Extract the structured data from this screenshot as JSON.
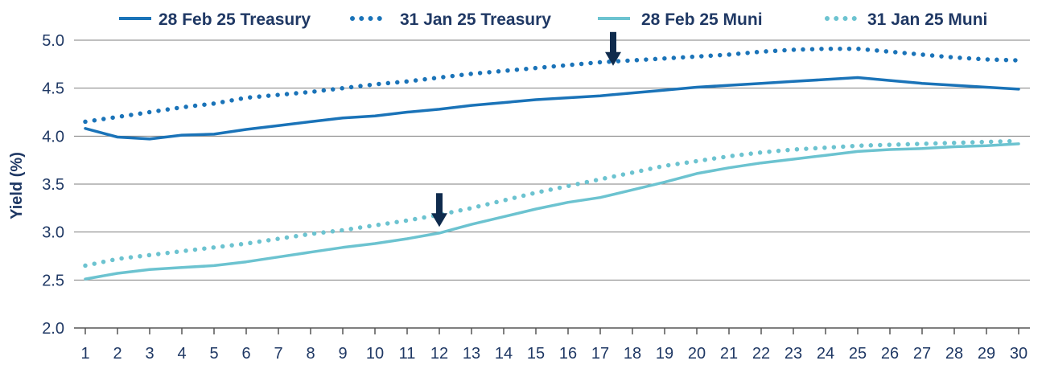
{
  "chart_data": {
    "type": "line",
    "title": "",
    "xlabel": "",
    "ylabel": "Yield (%)",
    "ylim": [
      2.0,
      5.0
    ],
    "yticks": [
      "2.0",
      "2.5",
      "3.0",
      "3.5",
      "4.0",
      "4.5",
      "5.0"
    ],
    "grid": "horizontal",
    "legend_position": "top",
    "x": [
      1,
      2,
      3,
      4,
      5,
      6,
      7,
      8,
      9,
      10,
      11,
      12,
      13,
      14,
      15,
      16,
      17,
      18,
      19,
      20,
      21,
      22,
      23,
      24,
      25,
      26,
      27,
      28,
      29,
      30
    ],
    "series": [
      {
        "name": "28 Feb 25 Treasury",
        "style": "solid",
        "color": "#1a73b8",
        "values": [
          4.08,
          3.99,
          3.97,
          4.01,
          4.02,
          4.07,
          4.11,
          4.15,
          4.19,
          4.21,
          4.25,
          4.28,
          4.32,
          4.35,
          4.38,
          4.4,
          4.42,
          4.45,
          4.48,
          4.51,
          4.53,
          4.55,
          4.57,
          4.59,
          4.61,
          4.58,
          4.55,
          4.53,
          4.51,
          4.49
        ]
      },
      {
        "name": "31 Jan 25 Treasury",
        "style": "dotted",
        "color": "#1a73b8",
        "values": [
          4.15,
          4.2,
          4.25,
          4.3,
          4.34,
          4.4,
          4.43,
          4.46,
          4.5,
          4.54,
          4.57,
          4.61,
          4.65,
          4.68,
          4.71,
          4.74,
          4.77,
          4.79,
          4.81,
          4.83,
          4.85,
          4.88,
          4.9,
          4.91,
          4.91,
          4.88,
          4.85,
          4.82,
          4.8,
          4.79
        ]
      },
      {
        "name": "28 Feb 25 Muni",
        "style": "solid",
        "color": "#6cc3d0",
        "values": [
          2.51,
          2.57,
          2.61,
          2.63,
          2.65,
          2.69,
          2.74,
          2.79,
          2.84,
          2.88,
          2.93,
          2.99,
          3.08,
          3.16,
          3.24,
          3.31,
          3.36,
          3.44,
          3.52,
          3.61,
          3.67,
          3.72,
          3.76,
          3.8,
          3.84,
          3.86,
          3.87,
          3.89,
          3.9,
          3.92
        ]
      },
      {
        "name": "31 Jan 25 Muni",
        "style": "dotted",
        "color": "#6cc3d0",
        "values": [
          2.65,
          2.72,
          2.76,
          2.8,
          2.84,
          2.88,
          2.93,
          2.98,
          3.02,
          3.07,
          3.12,
          3.18,
          3.25,
          3.33,
          3.41,
          3.48,
          3.55,
          3.62,
          3.69,
          3.74,
          3.79,
          3.83,
          3.86,
          3.88,
          3.9,
          3.91,
          3.92,
          3.93,
          3.94,
          3.95
        ]
      }
    ],
    "annotations": [
      {
        "type": "down-arrow",
        "x": 17.4,
        "y": 4.7,
        "color": "#0f2b4d"
      },
      {
        "type": "down-arrow",
        "x": 12.0,
        "y": 3.02,
        "color": "#0f2b4d"
      }
    ]
  }
}
